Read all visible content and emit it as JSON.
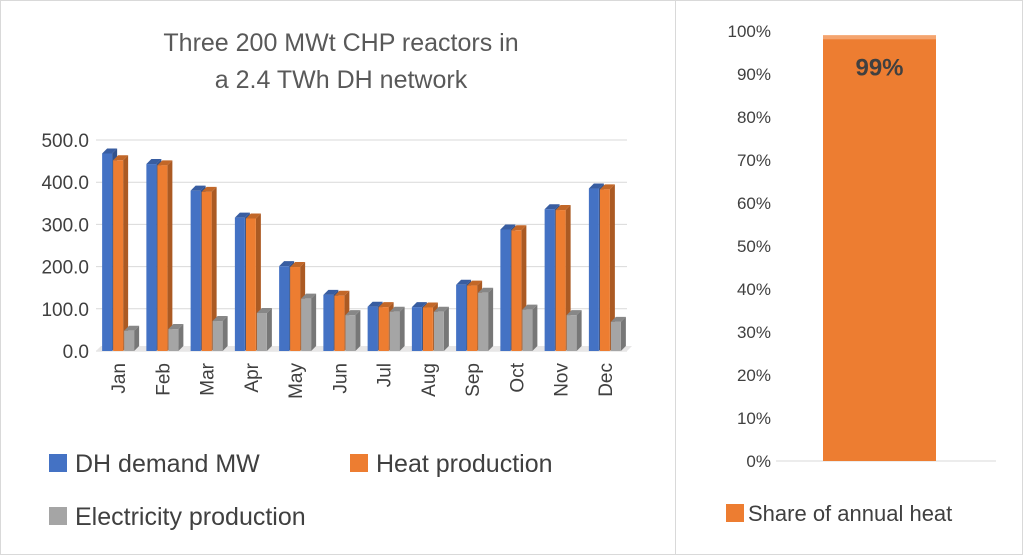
{
  "chart_data": [
    {
      "type": "bar",
      "title_lines": [
        "Three 200 MWt CHP reactors in",
        "a 2.4 TWh DH network"
      ],
      "categories": [
        "Jan",
        "Feb",
        "Mar",
        "Apr",
        "May",
        "Jun",
        "Jul",
        "Aug",
        "Sep",
        "Oct",
        "Nov",
        "Dec"
      ],
      "ylim": [
        0,
        500
      ],
      "yticks": [
        "0.0",
        "100.0",
        "200.0",
        "300.0",
        "400.0",
        "500.0"
      ],
      "grid": true,
      "legend_position": "bottom",
      "series": [
        {
          "name": "DH demand MW",
          "color": "#4472C4",
          "values": [
            468,
            443,
            380,
            316,
            201,
            133,
            105,
            104,
            157,
            288,
            336,
            385
          ]
        },
        {
          "name": "Heat production",
          "color": "#ED7D31",
          "values": [
            452,
            440,
            377,
            314,
            199,
            131,
            104,
            103,
            155,
            286,
            334,
            383
          ]
        },
        {
          "name": "Electricity production",
          "color": "#A5A5A5",
          "values": [
            48,
            52,
            71,
            90,
            124,
            85,
            93,
            93,
            138,
            98,
            85,
            69
          ]
        }
      ]
    },
    {
      "type": "bar",
      "ylim": [
        0,
        1
      ],
      "yticks": [
        "0%",
        "10%",
        "20%",
        "30%",
        "40%",
        "50%",
        "60%",
        "70%",
        "80%",
        "90%",
        "100%"
      ],
      "legend_position": "bottom",
      "series": [
        {
          "name": "Share of annual heat",
          "color": "#ED7D31",
          "values": [
            0.99
          ],
          "data_label": "99%"
        }
      ]
    }
  ]
}
